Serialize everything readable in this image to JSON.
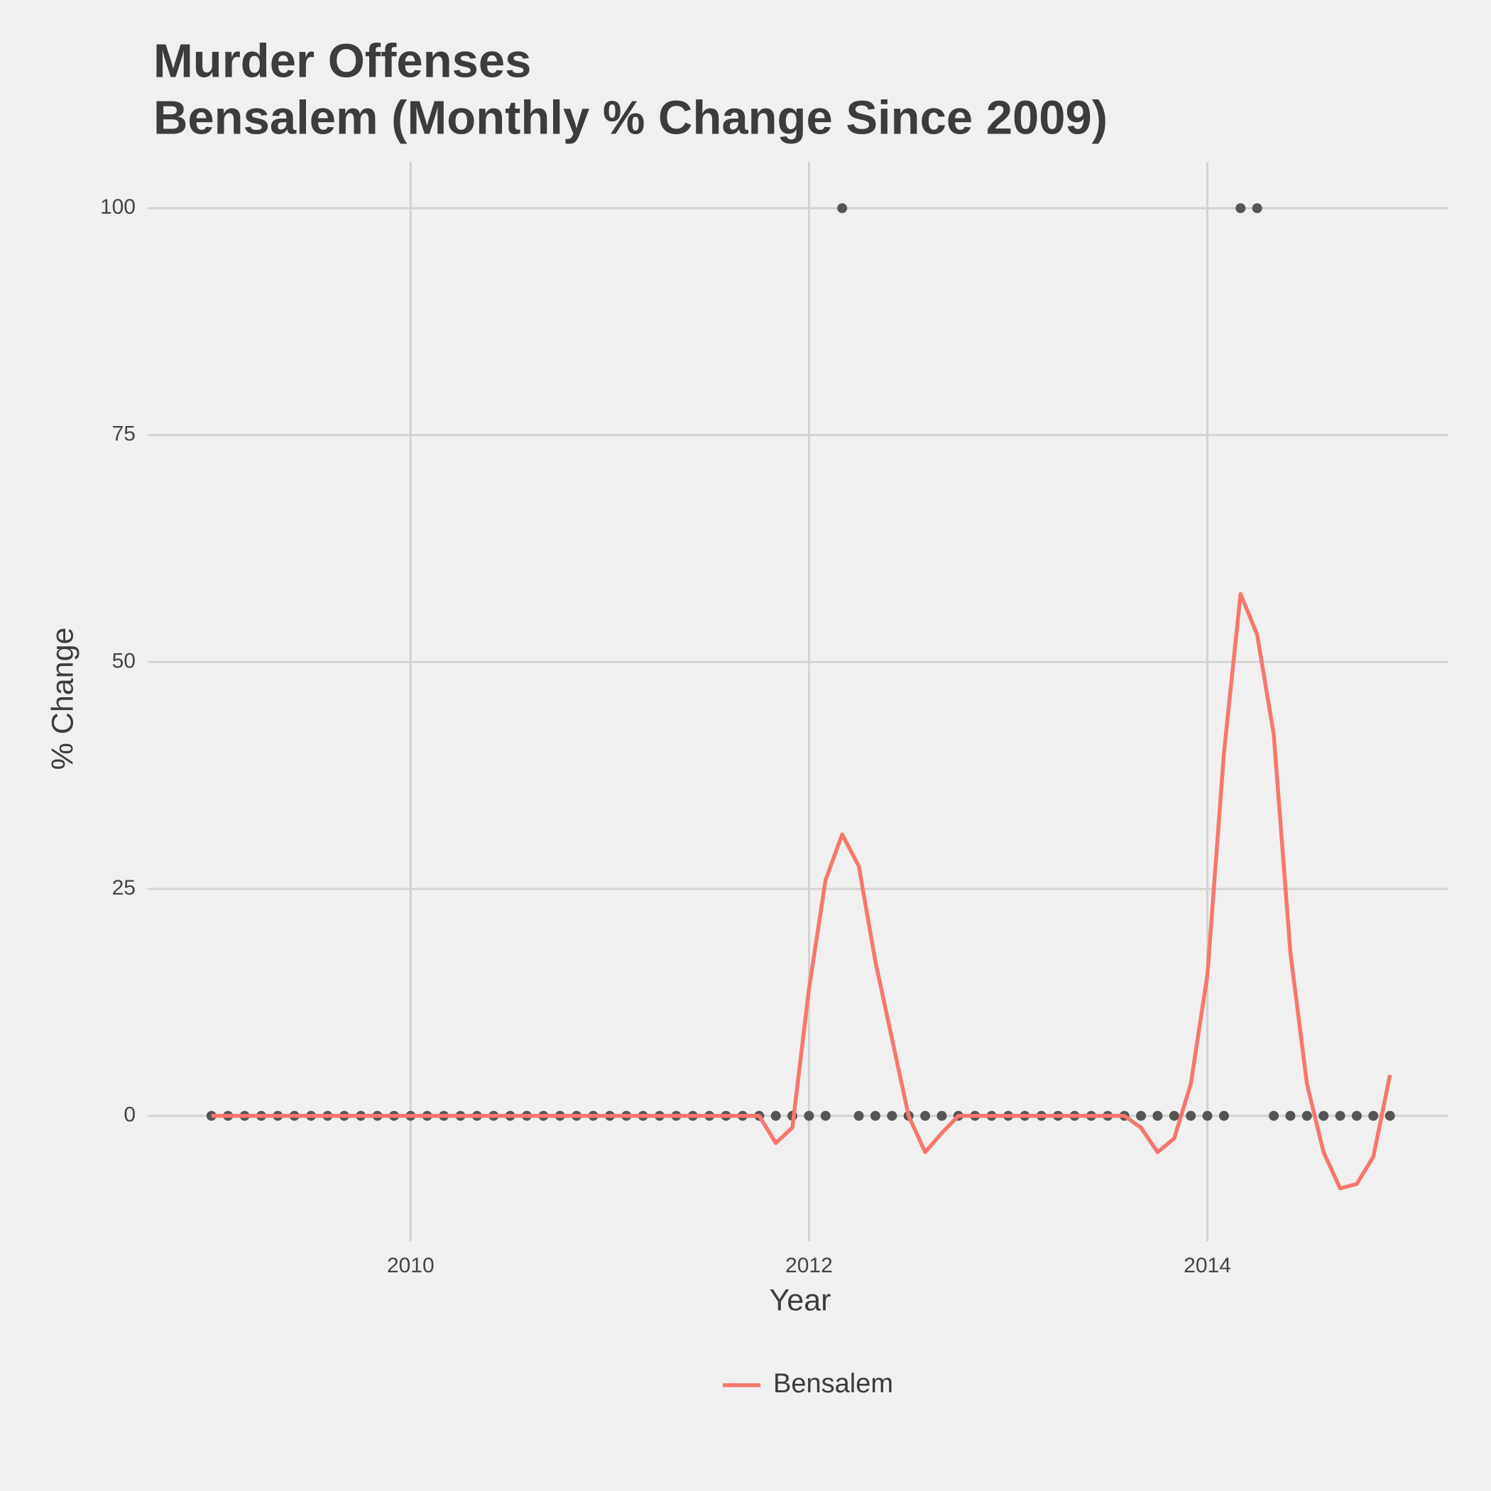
{
  "chart_data": {
    "type": "line",
    "title": "Murder Offenses",
    "subtitle": "Bensalem (Monthly % Change Since 2009)",
    "x_label": "Year",
    "y_label": "% Change",
    "x": [
      2009,
      2009.0833,
      2009.1667,
      2009.25,
      2009.3333,
      2009.4167,
      2009.5,
      2009.5833,
      2009.6667,
      2009.75,
      2009.8333,
      2009.9167,
      2010,
      2010.0833,
      2010.1667,
      2010.25,
      2010.3333,
      2010.4167,
      2010.5,
      2010.5833,
      2010.6667,
      2010.75,
      2010.8333,
      2010.9167,
      2011,
      2011.0833,
      2011.1667,
      2011.25,
      2011.3333,
      2011.4167,
      2011.5,
      2011.5833,
      2011.6667,
      2011.75,
      2011.8333,
      2011.9167,
      2012,
      2012.0833,
      2012.1667,
      2012.25,
      2012.3333,
      2012.4167,
      2012.5,
      2012.5833,
      2012.6667,
      2012.75,
      2012.8333,
      2012.9167,
      2013,
      2013.0833,
      2013.1667,
      2013.25,
      2013.3333,
      2013.4167,
      2013.5,
      2013.5833,
      2013.6667,
      2013.75,
      2013.8333,
      2013.9167,
      2014,
      2014.0833,
      2014.1667,
      2014.25,
      2014.3333,
      2014.4167,
      2014.5,
      2014.5833,
      2014.6667,
      2014.75,
      2014.8333,
      2014.9167
    ],
    "series": [
      {
        "name": "Bensalem",
        "color": "#f8766d",
        "values": [
          0,
          0,
          0,
          0,
          0,
          0,
          0,
          0,
          0,
          0,
          0,
          0,
          0,
          0,
          0,
          0,
          0,
          0,
          0,
          0,
          0,
          0,
          0,
          0,
          0,
          0,
          0,
          0,
          0,
          0,
          0,
          0,
          0,
          0,
          -3,
          -1.3,
          14,
          26,
          31,
          27.5,
          17,
          8.5,
          0,
          -4,
          -1.9,
          0,
          0,
          0,
          0,
          0,
          0,
          0,
          0,
          0,
          0,
          0,
          -1.3,
          -4,
          -2.5,
          3.5,
          15.5,
          40,
          57.5,
          53,
          42,
          18,
          3.5,
          -4,
          -8,
          -7.5,
          -4.5,
          4.5
        ]
      }
    ],
    "points": {
      "color": "#555555",
      "values": [
        0,
        0,
        0,
        0,
        0,
        0,
        0,
        0,
        0,
        0,
        0,
        0,
        0,
        0,
        0,
        0,
        0,
        0,
        0,
        0,
        0,
        0,
        0,
        0,
        0,
        0,
        0,
        0,
        0,
        0,
        0,
        0,
        0,
        0,
        0,
        0,
        0,
        0,
        100,
        0,
        0,
        0,
        0,
        0,
        0,
        0,
        0,
        0,
        0,
        0,
        0,
        0,
        0,
        0,
        0,
        0,
        0,
        0,
        0,
        0,
        0,
        0,
        100,
        100,
        0,
        0,
        0,
        0,
        0,
        0,
        0,
        0
      ]
    },
    "xlim": [
      2008.68,
      2015.21
    ],
    "xticks": [
      2010,
      2012,
      2014
    ],
    "ylim": [
      -13.8,
      105.1
    ],
    "yticks": [
      0,
      25,
      50,
      75,
      100
    ],
    "grid": true,
    "legend": "bottom"
  }
}
